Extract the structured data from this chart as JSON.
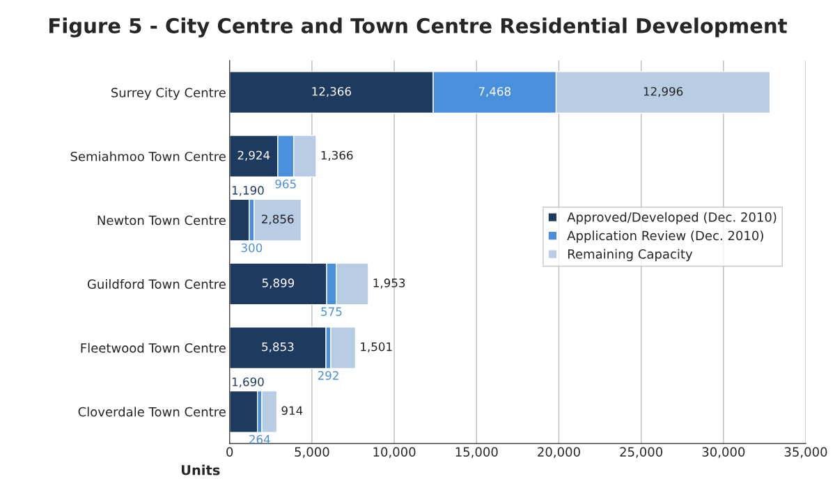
{
  "chart_data": {
    "type": "bar",
    "orientation": "horizontal",
    "stacked": true,
    "title": "Figure 5 - City Centre and Town Centre Residential Development",
    "xlabel": "Units",
    "categories": [
      "Surrey City Centre",
      "Semiahmoo Town Centre",
      "Newton Town Centre",
      "Guildford Town Centre",
      "Fleetwood Town Centre",
      "Cloverdale Town Centre"
    ],
    "series": [
      {
        "name": "Approved/Developed (Dec. 2010)",
        "color": "#1f3a5f",
        "values": [
          12366,
          2924,
          1190,
          5899,
          5853,
          1690
        ],
        "value_labels": [
          "12,366",
          "2,924",
          "1,190",
          "5,899",
          "5,853",
          "1,690"
        ]
      },
      {
        "name": "Application Review (Dec. 2010)",
        "color": "#4a8fdb",
        "values": [
          7468,
          965,
          300,
          575,
          292,
          264
        ],
        "value_labels": [
          "7,468",
          "965",
          "300",
          "575",
          "292",
          "264"
        ]
      },
      {
        "name": "Remaining Capacity",
        "color": "#b8cce4",
        "values": [
          12996,
          1366,
          2856,
          1953,
          1501,
          914
        ],
        "value_labels": [
          "12,996",
          "1,366",
          "2,856",
          "1,953",
          "1,501",
          "914"
        ]
      }
    ],
    "xlim": [
      0,
      35000
    ],
    "xticks": [
      {
        "value": 0,
        "label": "0"
      },
      {
        "value": 5000,
        "label": "5,000"
      },
      {
        "value": 10000,
        "label": "10,000"
      },
      {
        "value": 15000,
        "label": "15,000"
      },
      {
        "value": 20000,
        "label": "20,000"
      },
      {
        "value": 25000,
        "label": "25,000"
      },
      {
        "value": 30000,
        "label": "30,000"
      },
      {
        "value": 35000,
        "label": "35,000"
      }
    ],
    "grid": "x",
    "legend": "right"
  }
}
